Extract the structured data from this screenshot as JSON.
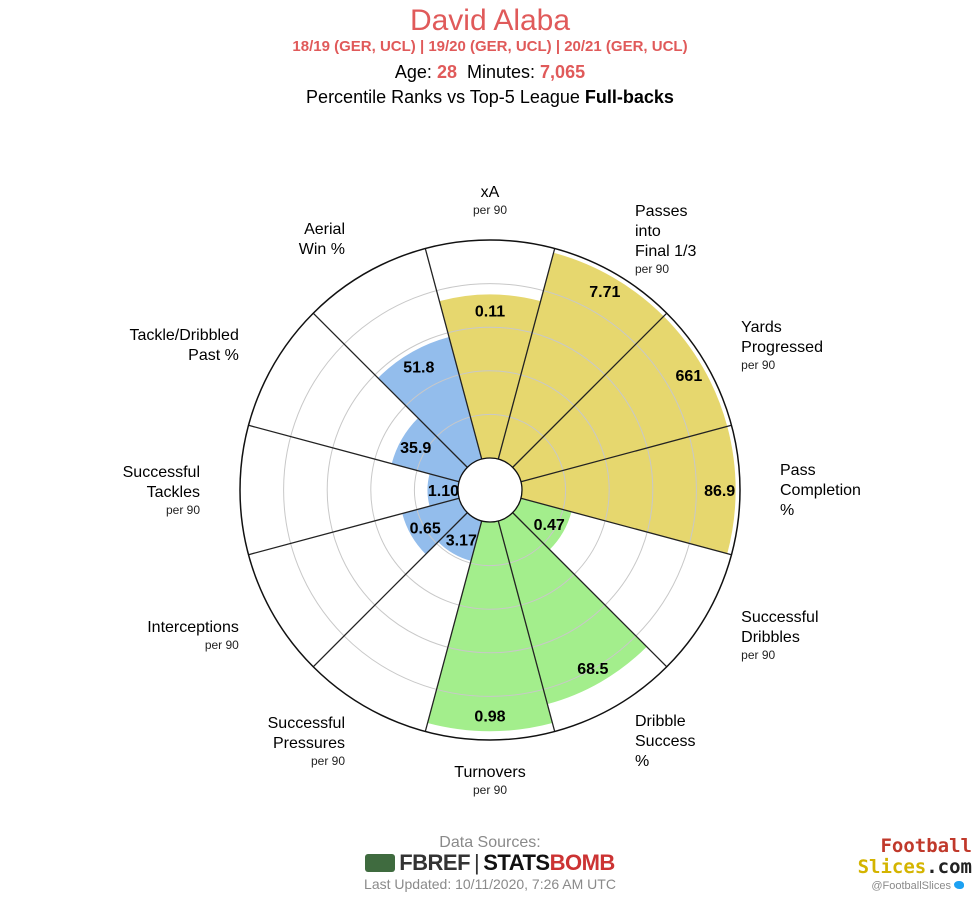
{
  "header": {
    "title": "David Alaba",
    "subtitle": "18/19 (GER, UCL)  |  19/20 (GER, UCL)  |  20/21 (GER, UCL)",
    "age_label": "Age:",
    "age": "28",
    "minutes_label": "Minutes:",
    "minutes": "7,065",
    "rank_text": "Percentile Ranks vs Top-5 League",
    "rank_bold": "Full-backs"
  },
  "chart_data": {
    "type": "polar-bar",
    "rlim": [
      0,
      100
    ],
    "metrics": [
      {
        "label": [
          "xA"
        ],
        "unit": "per 90",
        "value": "0.11",
        "percentile": 75,
        "color": "#e6d76e"
      },
      {
        "label": [
          "Passes",
          "into",
          "Final 1/3"
        ],
        "unit": "per 90",
        "value": "7.71",
        "percentile": 98,
        "color": "#e6d76e"
      },
      {
        "label": [
          "Yards",
          "Progressed"
        ],
        "unit": "per 90",
        "value": "661",
        "percentile": 98,
        "color": "#e6d76e"
      },
      {
        "label": [
          "Pass",
          "Completion",
          "%"
        ],
        "unit": "",
        "value": "86.9",
        "percentile": 98,
        "color": "#e6d76e"
      },
      {
        "label": [
          "Successful",
          "Dribbles"
        ],
        "unit": "per 90",
        "value": "0.47",
        "percentile": 24,
        "color": "#a3ee8c"
      },
      {
        "label": [
          "Dribble",
          "Success",
          "%"
        ],
        "unit": "",
        "value": "68.5",
        "percentile": 87,
        "color": "#a3ee8c"
      },
      {
        "label": [
          "Turnovers"
        ],
        "unit": "per 90",
        "value": "0.98",
        "percentile": 96,
        "color": "#a3ee8c"
      },
      {
        "label": [
          "Successful",
          "Pressures"
        ],
        "unit": "per 90",
        "value": "3.17",
        "percentile": 19,
        "color": "#93bdec"
      },
      {
        "label": [
          "Interceptions"
        ],
        "unit": "per 90",
        "value": "0.65",
        "percentile": 27,
        "color": "#93bdec"
      },
      {
        "label": [
          "Successful",
          "Tackles"
        ],
        "unit": "per 90",
        "value": "1.10",
        "percentile": 14,
        "color": "#93bdec"
      },
      {
        "label": [
          "Tackle/Dribbled",
          "Past %"
        ],
        "unit": "",
        "value": "35.9",
        "percentile": 32,
        "color": "#93bdec"
      },
      {
        "label": [
          "Aerial",
          "Win %"
        ],
        "unit": "",
        "value": "51.8",
        "percentile": 58,
        "color": "#93bdec"
      }
    ],
    "grid_rings": [
      20,
      40,
      60,
      80
    ]
  },
  "footer": {
    "sources_label": "Data Sources:",
    "fbref": "FBREF",
    "statsbomb_a": "STATS",
    "statsbomb_b": "BOMB",
    "updated": "Last Updated: 10/11/2020, 7:26 AM UTC",
    "brand_line1": "Football",
    "brand_line2a": "Slices",
    "brand_line2b": ".com",
    "handle": "@FootballSlices"
  }
}
